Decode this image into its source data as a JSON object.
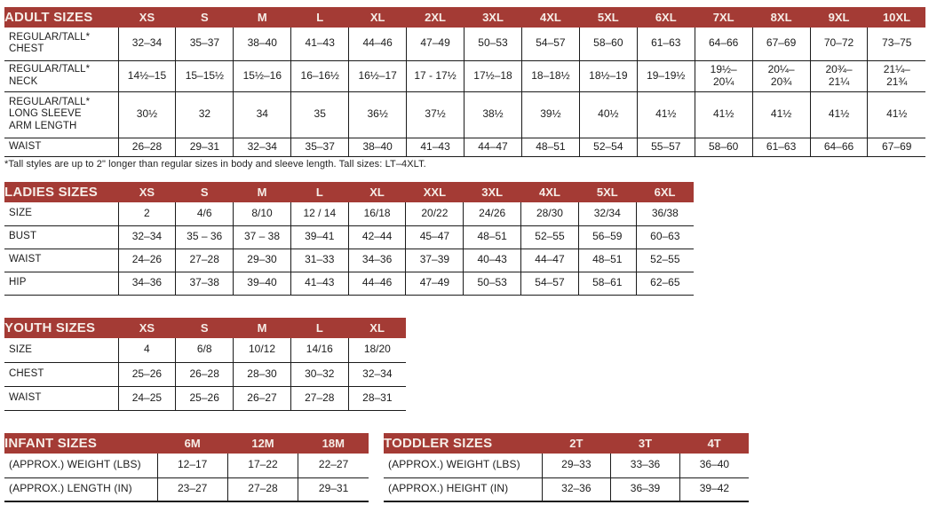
{
  "page": {
    "accent_red": "#A43B35",
    "header_text_color": "#F6EDE7",
    "footnote": "*Tall styles are up to 2\" longer than regular sizes in body and sleeve length. Tall sizes: LT–4XLT."
  },
  "tables": {
    "adult": {
      "title": "ADULT SIZES",
      "columns": [
        "XS",
        "S",
        "M",
        "L",
        "XL",
        "2XL",
        "3XL",
        "4XL",
        "5XL",
        "6XL",
        "7XL",
        "8XL",
        "9XL",
        "10XL"
      ],
      "rows": [
        {
          "label": "REGULAR/TALL*\nCHEST",
          "values": [
            "32–34",
            "35–37",
            "38–40",
            "41–43",
            "44–46",
            "47–49",
            "50–53",
            "54–57",
            "58–60",
            "61–63",
            "64–66",
            "67–69",
            "70–72",
            "73–75"
          ]
        },
        {
          "label": "REGULAR/TALL*\nNECK",
          "values": [
            "14½–15",
            "15–15½",
            "15½–16",
            "16–16½",
            "16½–17",
            "17 - 17½",
            "17½–18",
            "18–18½",
            "18½–19",
            "19–19½",
            "19½–\n20¼",
            "20¼–\n20¾",
            "20¾–\n21¼",
            "21¼–\n21¾"
          ]
        },
        {
          "label": "REGULAR/TALL*\nLONG SLEEVE\nARM LENGTH",
          "values": [
            "30½",
            "32",
            "34",
            "35",
            "36½",
            "37½",
            "38½",
            "39½",
            "40½",
            "41½",
            "41½",
            "41½",
            "41½",
            "41½"
          ]
        },
        {
          "label": "WAIST",
          "values": [
            "26–28",
            "29–31",
            "32–34",
            "35–37",
            "38–40",
            "41–43",
            "44–47",
            "48–51",
            "52–54",
            "55–57",
            "58–60",
            "61–63",
            "64–66",
            "67–69"
          ]
        }
      ]
    },
    "ladies": {
      "title": "LADIES SIZES",
      "columns": [
        "XS",
        "S",
        "M",
        "L",
        "XL",
        "XXL",
        "3XL",
        "4XL",
        "5XL",
        "6XL"
      ],
      "rows": [
        {
          "label": "SIZE",
          "values": [
            "2",
            "4/6",
            "8/10",
            "12 / 14",
            "16/18",
            "20/22",
            "24/26",
            "28/30",
            "32/34",
            "36/38"
          ]
        },
        {
          "label": "BUST",
          "values": [
            "32–34",
            "35 – 36",
            "37 – 38",
            "39–41",
            "42–44",
            "45–47",
            "48–51",
            "52–55",
            "56–59",
            "60–63"
          ]
        },
        {
          "label": "WAIST",
          "values": [
            "24–26",
            "27–28",
            "29–30",
            "31–33",
            "34–36",
            "37–39",
            "40–43",
            "44–47",
            "48–51",
            "52–55"
          ]
        },
        {
          "label": "HIP",
          "values": [
            "34–36",
            "37–38",
            "39–40",
            "41–43",
            "44–46",
            "47–49",
            "50–53",
            "54–57",
            "58–61",
            "62–65"
          ]
        }
      ]
    },
    "youth": {
      "title": "YOUTH SIZES",
      "columns": [
        "XS",
        "S",
        "M",
        "L",
        "XL"
      ],
      "rows": [
        {
          "label": "SIZE",
          "values": [
            "4",
            "6/8",
            "10/12",
            "14/16",
            "18/20"
          ]
        },
        {
          "label": "CHEST",
          "values": [
            "25–26",
            "26–28",
            "28–30",
            "30–32",
            "32–34"
          ]
        },
        {
          "label": "WAIST",
          "values": [
            "24–25",
            "25–26",
            "26–27",
            "27–28",
            "28–31"
          ]
        }
      ]
    },
    "infant": {
      "title": "INFANT SIZES",
      "columns": [
        "6M",
        "12M",
        "18M"
      ],
      "rows": [
        {
          "label": "(APPROX.) WEIGHT (LBS)",
          "values": [
            "12–17",
            "17–22",
            "22–27"
          ]
        },
        {
          "label": "(APPROX.) LENGTH (IN)",
          "values": [
            "23–27",
            "27–28",
            "29–31"
          ]
        }
      ]
    },
    "toddler": {
      "title": "TODDLER SIZES",
      "columns": [
        "2T",
        "3T",
        "4T"
      ],
      "rows": [
        {
          "label": "(APPROX.) WEIGHT (LBS)",
          "values": [
            "29–33",
            "33–36",
            "36–40"
          ]
        },
        {
          "label": "(APPROX.) HEIGHT (IN)",
          "values": [
            "32–36",
            "36–39",
            "39–42"
          ]
        }
      ]
    }
  }
}
